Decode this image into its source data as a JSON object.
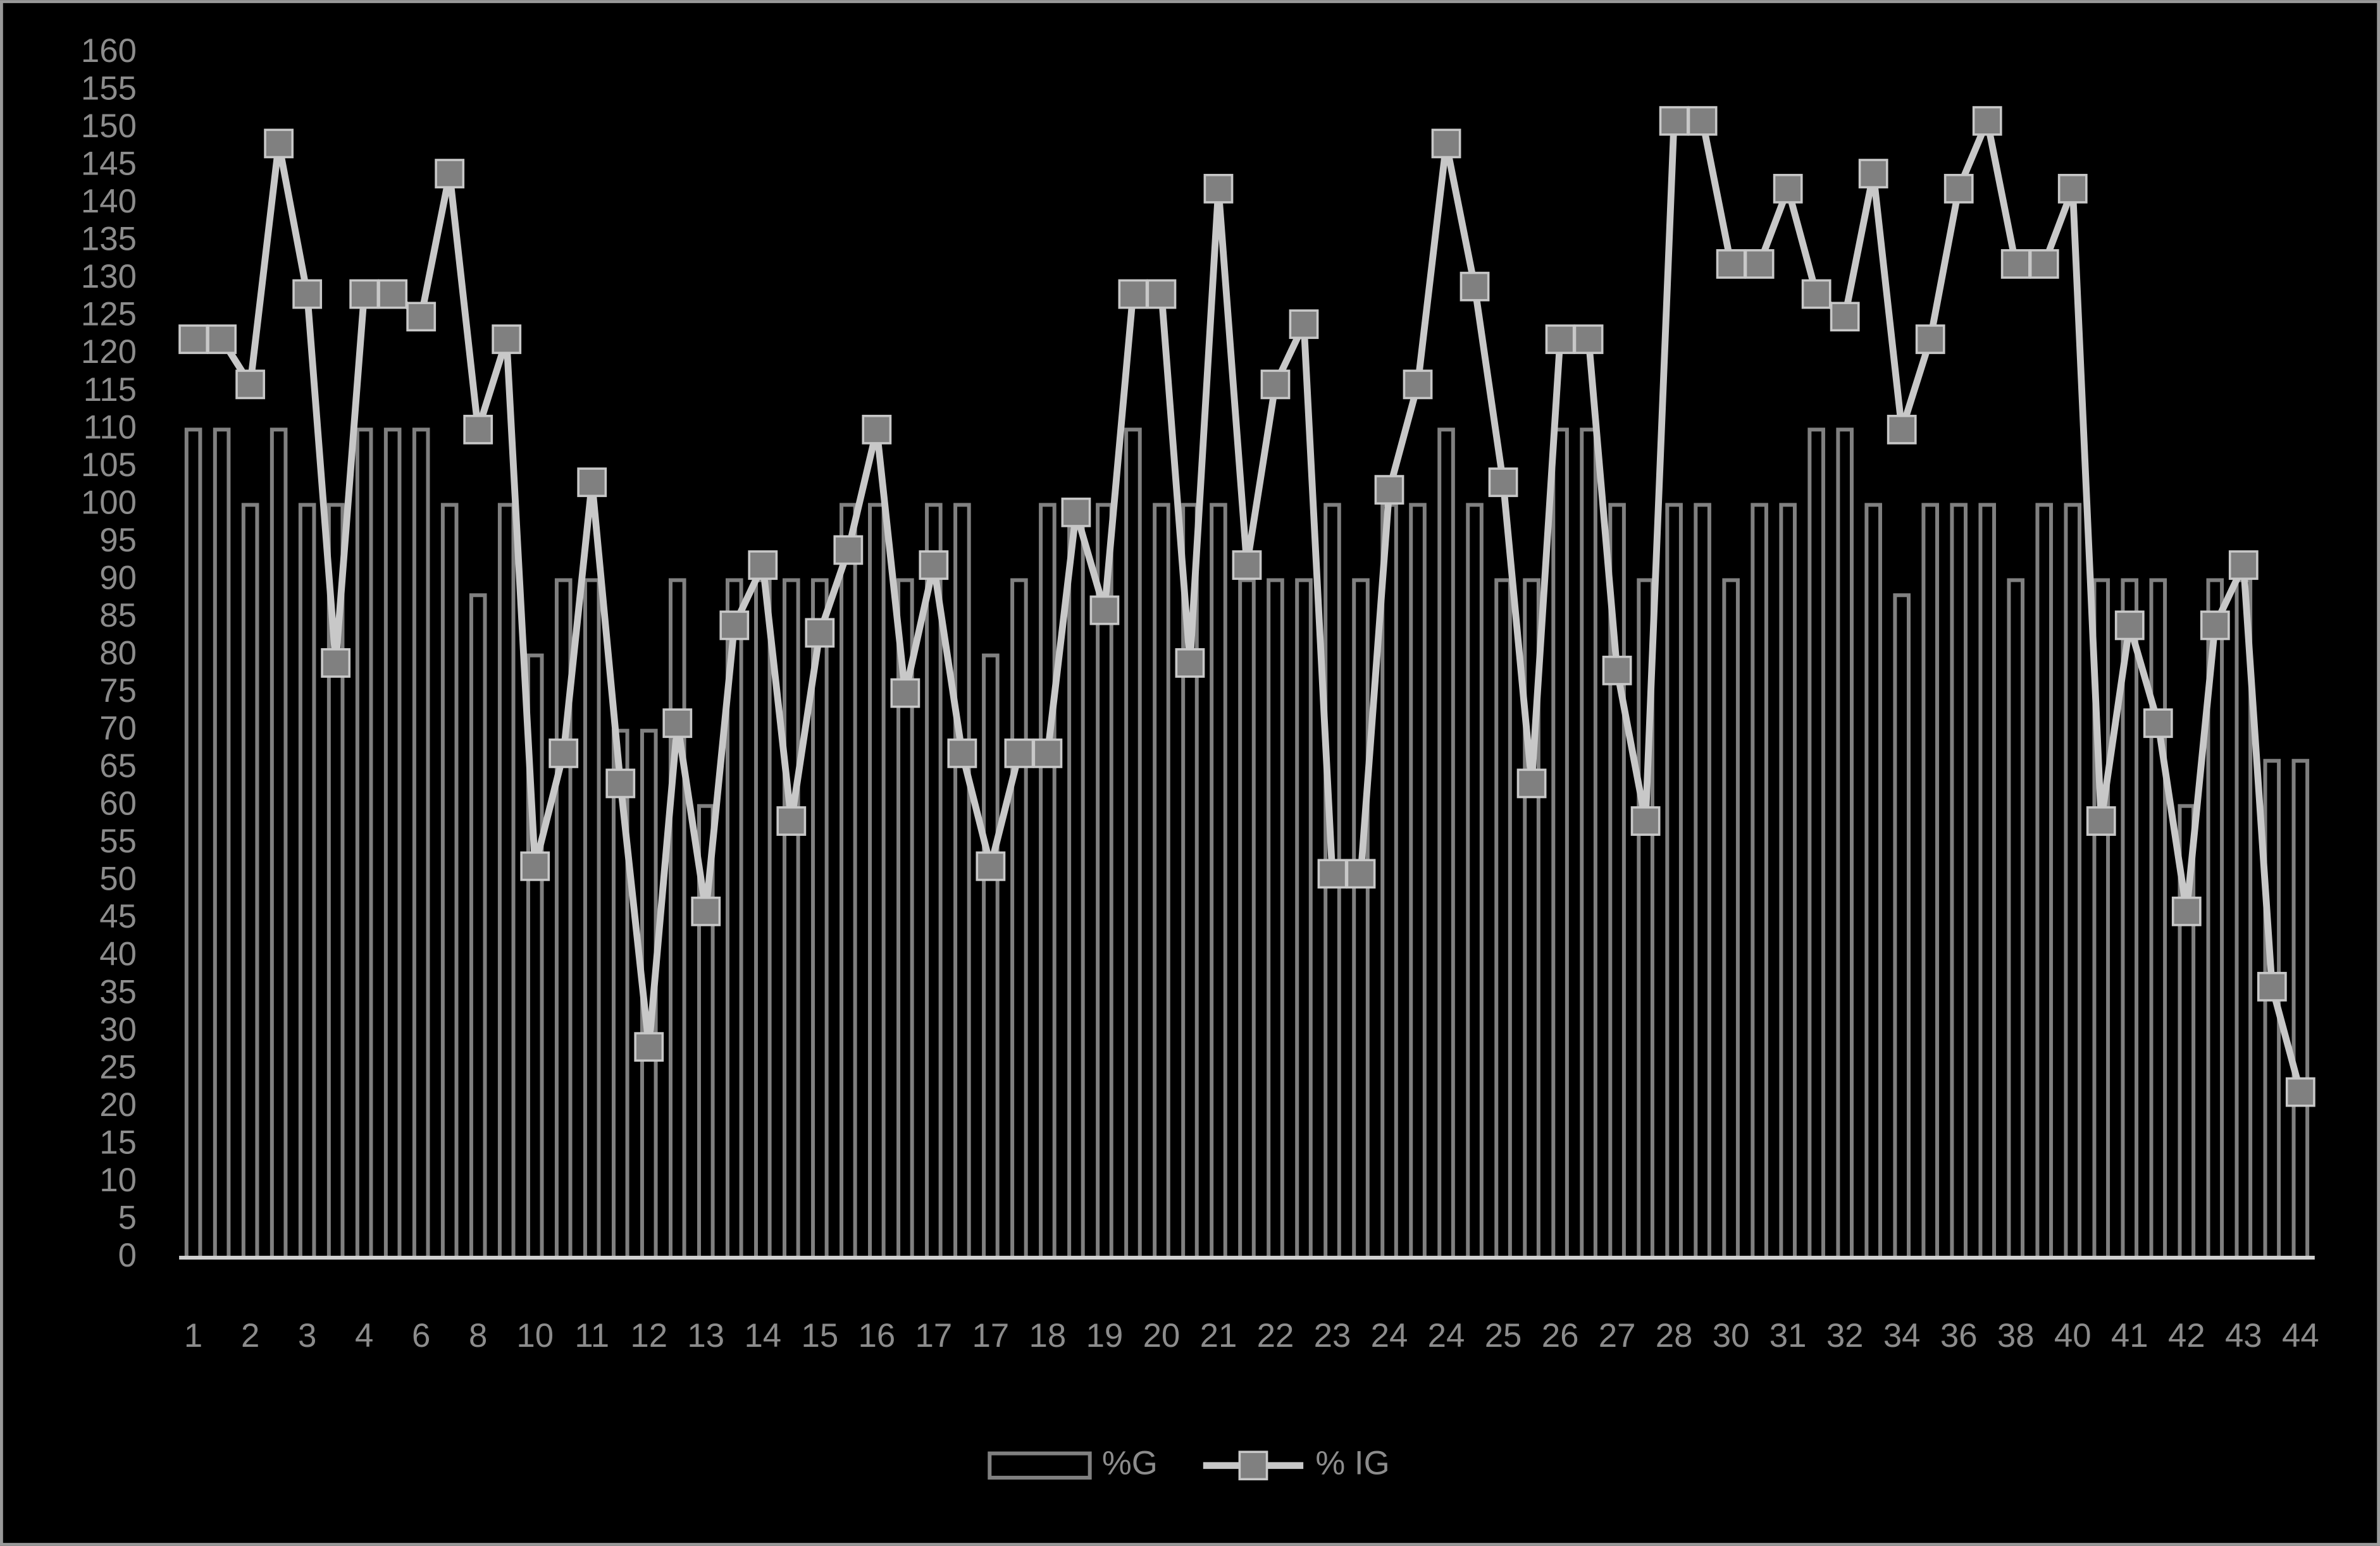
{
  "chart_data": {
    "type": "bar-line",
    "categories": [
      1,
      null,
      2,
      null,
      3,
      null,
      4,
      null,
      6,
      null,
      8,
      null,
      10,
      null,
      11,
      null,
      12,
      null,
      13,
      null,
      14,
      null,
      15,
      null,
      16,
      null,
      17,
      null,
      17,
      null,
      18,
      null,
      19,
      null,
      20,
      null,
      21,
      null,
      22,
      null,
      23,
      null,
      24,
      null,
      24,
      null,
      25,
      null,
      26,
      null,
      27,
      null,
      28,
      null,
      30,
      null,
      31,
      null,
      32,
      null,
      34,
      null,
      36,
      null,
      38,
      null,
      40,
      null,
      41,
      null,
      42,
      null,
      43,
      null,
      44
    ],
    "series": [
      {
        "name": "%G",
        "type": "bar",
        "color": "#808080",
        "values": [
          110,
          110,
          100,
          110,
          100,
          100,
          110,
          110,
          110,
          100,
          88,
          100,
          80,
          90,
          90,
          70,
          70,
          90,
          60,
          90,
          90,
          90,
          90,
          100,
          100,
          90,
          100,
          100,
          80,
          90,
          100,
          100,
          100,
          110,
          100,
          100,
          100,
          90,
          90,
          90,
          100,
          90,
          100,
          100,
          110,
          100,
          90,
          90,
          110,
          110,
          100,
          90,
          100,
          100,
          90,
          100,
          100,
          110,
          110,
          100,
          88,
          100,
          100,
          100,
          90,
          100,
          100,
          90,
          90,
          90,
          60,
          90,
          90,
          66,
          66
        ]
      },
      {
        "name": "% IG",
        "type": "line",
        "color": "#c8c8c8",
        "marker_color": "#808080",
        "values": [
          122,
          122,
          116,
          148,
          128,
          79,
          128,
          128,
          125,
          144,
          110,
          122,
          52,
          67,
          103,
          63,
          28,
          71,
          46,
          84,
          92,
          58,
          83,
          94,
          110,
          75,
          92,
          67,
          52,
          67,
          67,
          99,
          86,
          128,
          128,
          79,
          142,
          92,
          116,
          124,
          51,
          51,
          102,
          116,
          148,
          129,
          103,
          63,
          122,
          122,
          78,
          58,
          151,
          151,
          132,
          132,
          142,
          128,
          125,
          144,
          110,
          122,
          142,
          151,
          132,
          132,
          142,
          58,
          84,
          71,
          46,
          84,
          92,
          36,
          22
        ]
      }
    ],
    "ylim": [
      0,
      160
    ],
    "yticks": [
      0,
      5,
      10,
      15,
      20,
      25,
      30,
      35,
      40,
      45,
      50,
      55,
      60,
      65,
      70,
      75,
      80,
      85,
      90,
      95,
      100,
      105,
      110,
      115,
      120,
      125,
      130,
      135,
      140,
      145,
      150,
      155,
      160
    ],
    "grid": false,
    "legend": "bottom"
  }
}
